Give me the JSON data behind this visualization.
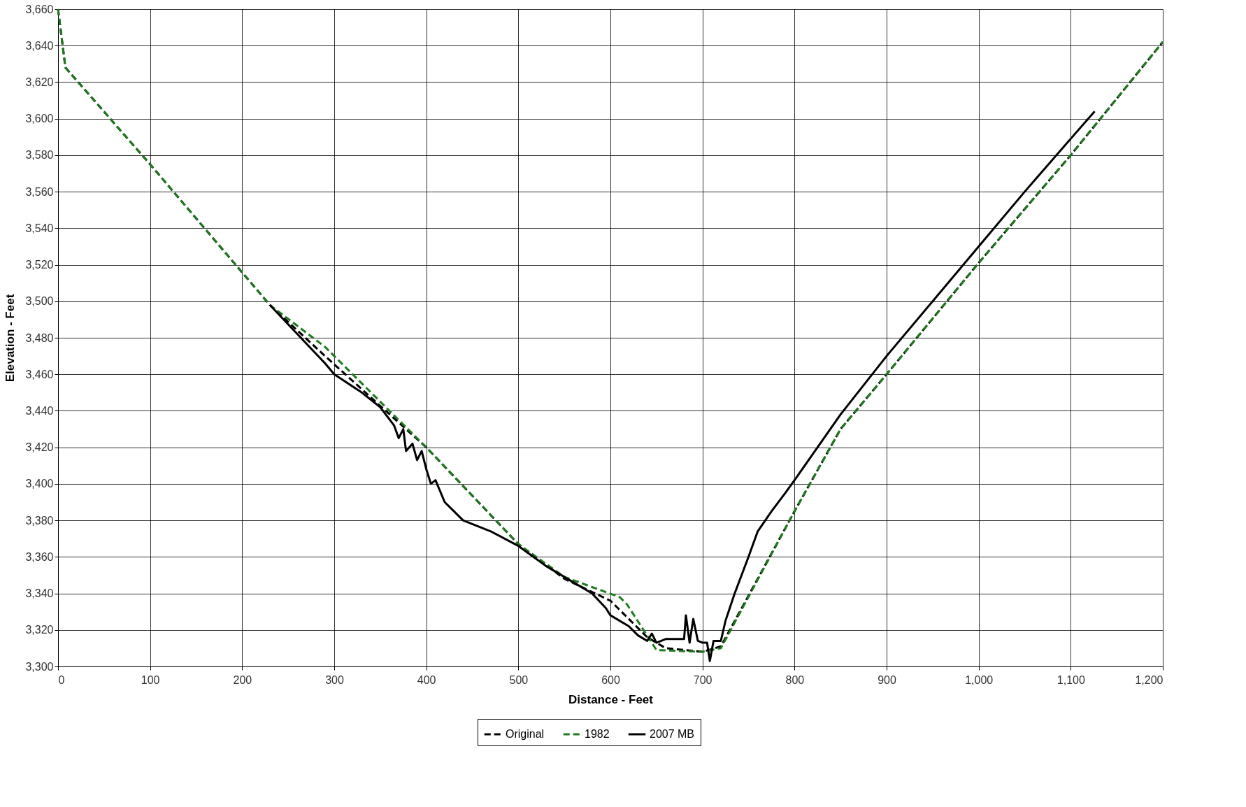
{
  "chart_data": {
    "type": "line",
    "xlabel": "Distance - Feet",
    "ylabel": "Elevation - Feet",
    "xlim": [
      0,
      1200
    ],
    "xticks": [
      0,
      100,
      200,
      300,
      400,
      500,
      600,
      700,
      800,
      900,
      {
        "value": 1000,
        "label": "1,000"
      },
      {
        "value": 1100,
        "label": "1,100"
      },
      {
        "value": 1200,
        "label": "1,200"
      }
    ],
    "ylim": [
      3300,
      3660
    ],
    "yticks": [
      {
        "value": 3300,
        "label": "3,300"
      },
      {
        "value": 3320,
        "label": "3,320"
      },
      {
        "value": 3340,
        "label": "3,340"
      },
      {
        "value": 3360,
        "label": "3,360"
      },
      {
        "value": 3380,
        "label": "3,380"
      },
      {
        "value": 3400,
        "label": "3,400"
      },
      {
        "value": 3420,
        "label": "3,420"
      },
      {
        "value": 3440,
        "label": "3,440"
      },
      {
        "value": 3460,
        "label": "3,460"
      },
      {
        "value": 3480,
        "label": "3,480"
      },
      {
        "value": 3500,
        "label": "3,500"
      },
      {
        "value": 3520,
        "label": "3,520"
      },
      {
        "value": 3540,
        "label": "3,540"
      },
      {
        "value": 3560,
        "label": "3,560"
      },
      {
        "value": 3580,
        "label": "3,580"
      },
      {
        "value": 3600,
        "label": "3,600"
      },
      {
        "value": 3620,
        "label": "3,620"
      },
      {
        "value": 3640,
        "label": "3,640"
      },
      {
        "value": 3660,
        "label": "3,660"
      }
    ],
    "grid": true,
    "legend": "bottom",
    "marker": "none",
    "series": [
      {
        "name": "Original",
        "color": "#000000",
        "line_style": "dashed",
        "x": [
          0,
          8,
          100,
          230,
          290,
          400,
          500,
          550,
          600,
          640,
          660,
          700,
          720,
          800,
          850,
          900,
          1000,
          1100,
          1200
        ],
        "values": [
          3660,
          3628,
          3575,
          3498,
          3470,
          3420,
          3367,
          3348,
          3336,
          3316,
          3310,
          3308,
          3311,
          3385,
          3430,
          3460,
          3521,
          3580,
          3642
        ]
      },
      {
        "name": "1982",
        "color": "#1f7a1f",
        "line_style": "dashed",
        "x": [
          0,
          8,
          100,
          230,
          290,
          400,
          500,
          550,
          610,
          618,
          650,
          700,
          720,
          800,
          850,
          900,
          1000,
          1100,
          1200
        ],
        "values": [
          3660,
          3628,
          3575,
          3498,
          3475,
          3420,
          3367,
          3349,
          3338,
          3334,
          3309,
          3308,
          3310,
          3385,
          3430,
          3460,
          3521,
          3580,
          3642
        ]
      },
      {
        "name": "2007 MB",
        "color": "#000000",
        "line_style": "solid",
        "x": [
          230,
          260,
          290,
          300,
          330,
          350,
          365,
          370,
          375,
          378,
          385,
          390,
          395,
          400,
          405,
          410,
          420,
          440,
          470,
          500,
          530,
          560,
          580,
          595,
          600,
          620,
          630,
          640,
          645,
          650,
          660,
          680,
          682,
          686,
          690,
          695,
          700,
          705,
          708,
          712,
          720,
          725,
          735,
          750,
          760,
          775,
          790,
          800,
          850,
          900,
          1000,
          1050,
          1100,
          1126
        ],
        "values": [
          3498,
          3482,
          3466,
          3460,
          3450,
          3442,
          3432,
          3425,
          3430,
          3418,
          3422,
          3413,
          3418,
          3408,
          3400,
          3402,
          3390,
          3380,
          3374,
          3366,
          3355,
          3346,
          3340,
          3332,
          3328,
          3322,
          3317,
          3314,
          3318,
          3313,
          3315,
          3315,
          3328,
          3313,
          3326,
          3314,
          3313,
          3313,
          3303,
          3314,
          3314,
          3325,
          3340,
          3360,
          3374,
          3385,
          3395,
          3402,
          3438,
          3470,
          3530,
          3560,
          3589,
          3604
        ]
      }
    ]
  }
}
